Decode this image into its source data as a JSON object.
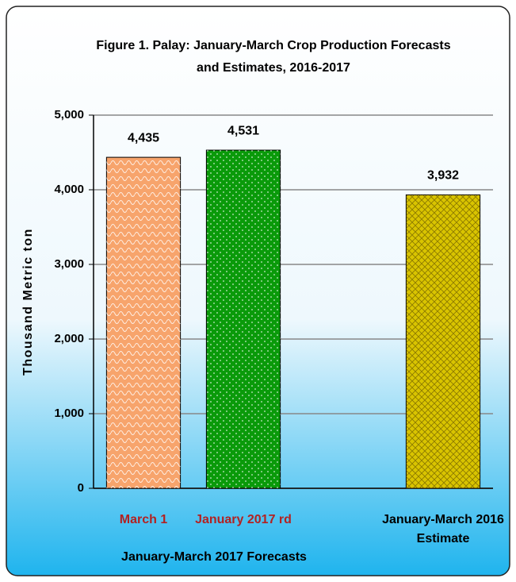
{
  "chart_data": {
    "type": "bar",
    "title": [
      "Figure 1. Palay:  January-March Crop Production Forecasts",
      "and Estimates, 2016-2017"
    ],
    "y_label": "Thousand Metric ton",
    "group_label": "January-March 2017 Forecasts",
    "categories": [
      "March 1",
      "January 2017 rd",
      null,
      "January-March 2016 Estimate"
    ],
    "category_label_colors": [
      "#b22222",
      "#b22222",
      null,
      "#000000"
    ],
    "values": [
      4435,
      4531,
      null,
      3932
    ],
    "value_labels": [
      "4,435",
      "4,531",
      null,
      "3,932"
    ],
    "colors": [
      "#f7a46c",
      "#0a9a0a",
      null,
      "#d9c400"
    ],
    "ylim": [
      0,
      5000
    ],
    "yticks": [
      0,
      {
        "value": 1000,
        "label": "1,000"
      },
      {
        "value": 2000,
        "label": "2,000"
      },
      {
        "value": 3000,
        "label": "3,000"
      },
      {
        "value": 4000,
        "label": "4,000"
      },
      {
        "value": 5000,
        "label": "5,000"
      }
    ],
    "grid": true
  }
}
